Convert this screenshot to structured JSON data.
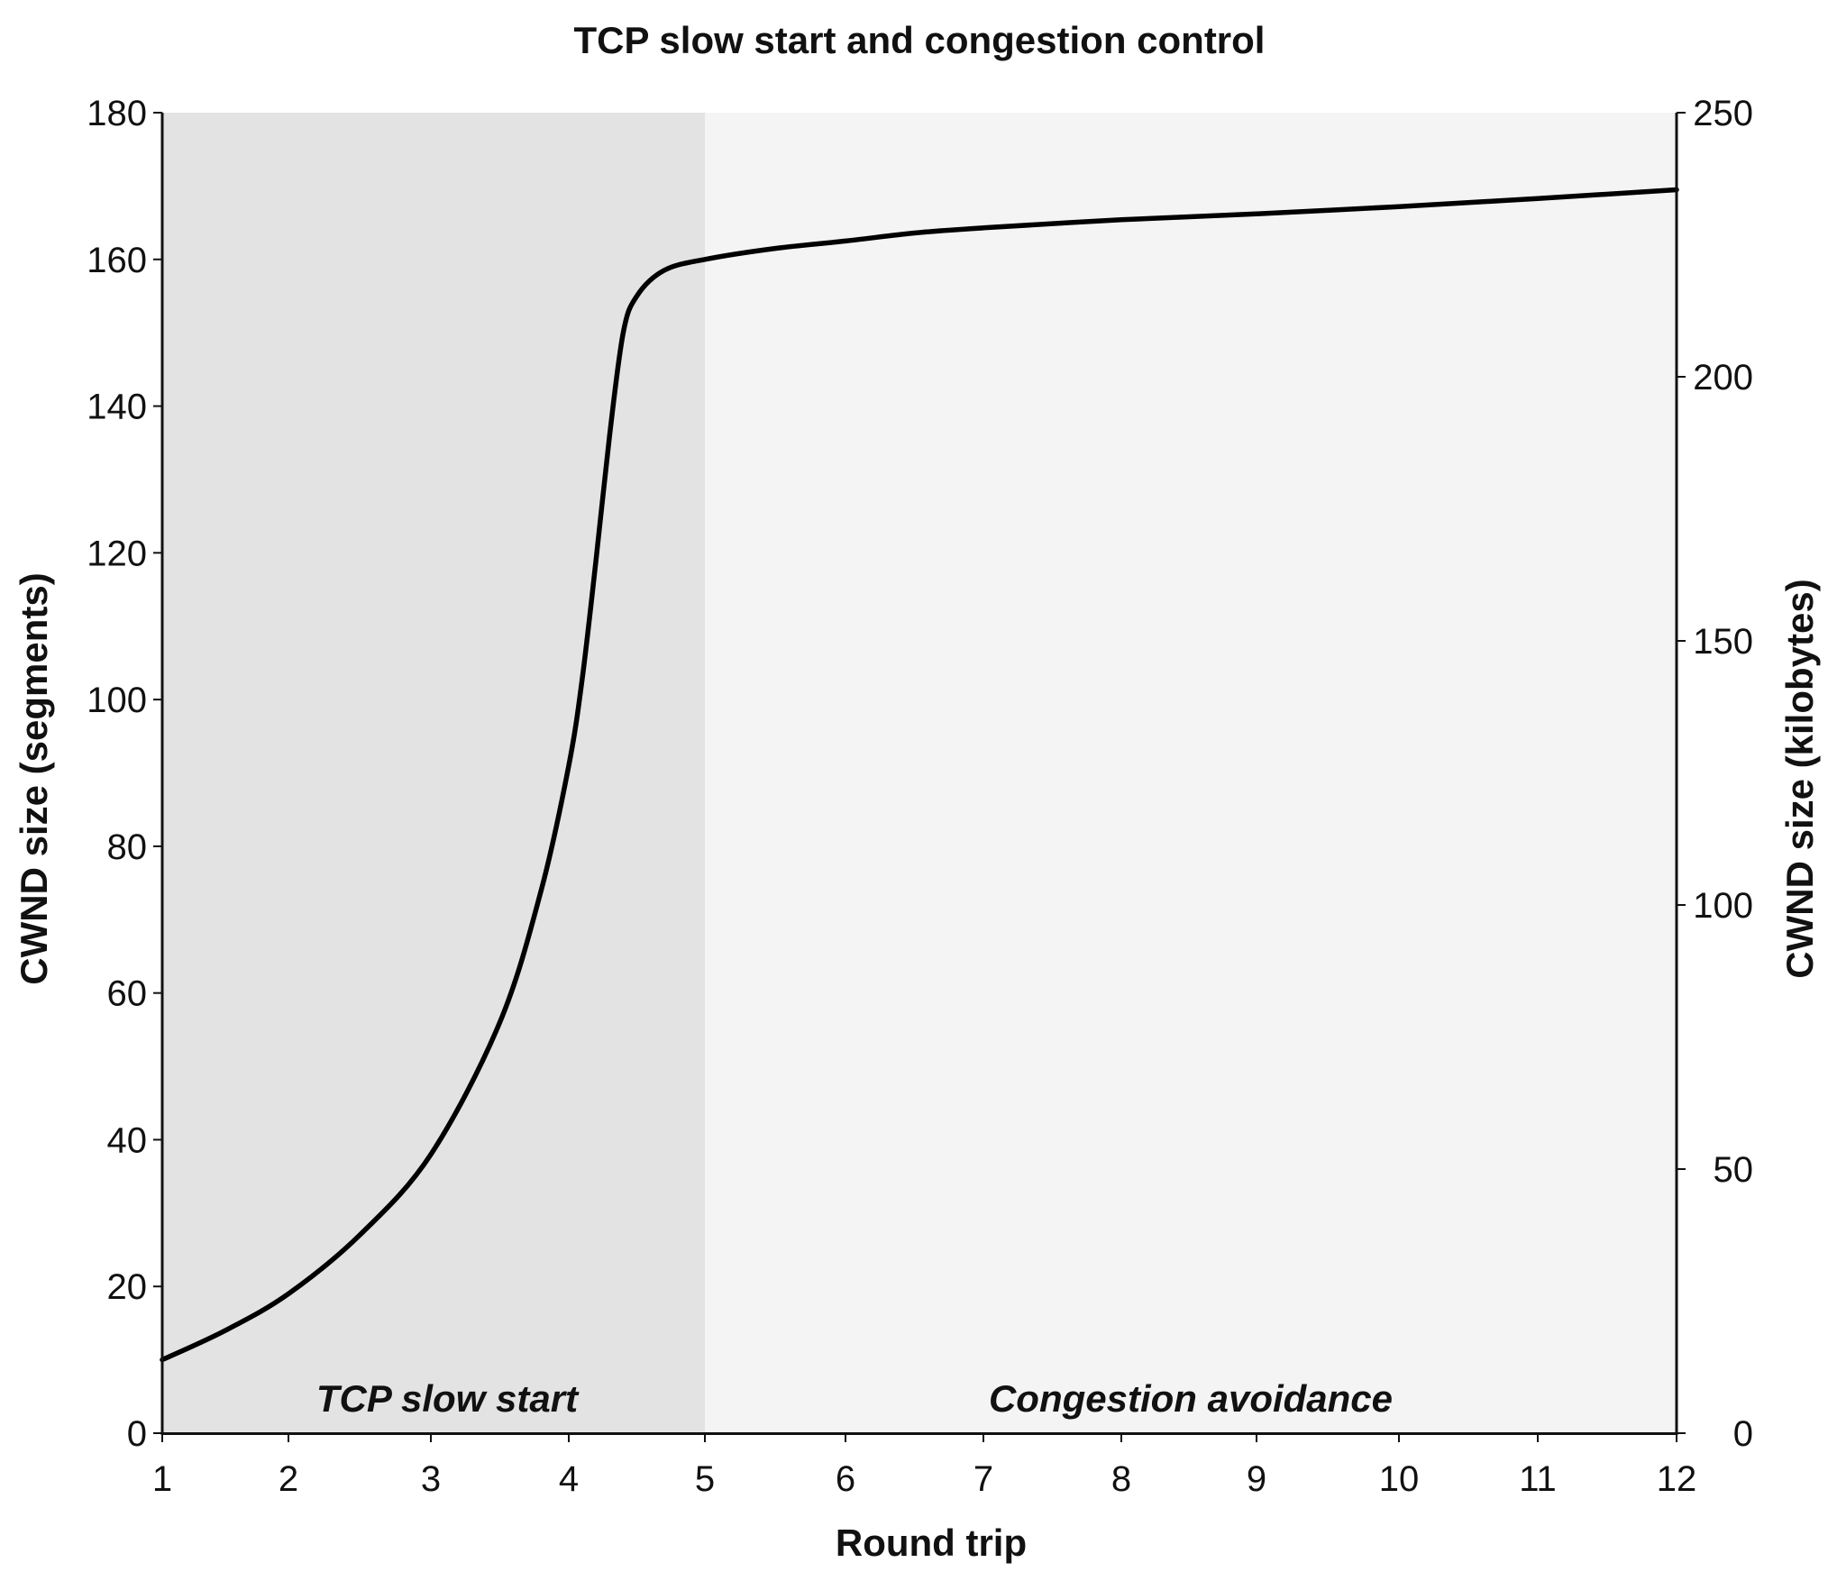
{
  "chart_data": {
    "type": "line",
    "title": "TCP slow start and congestion control",
    "xlabel": "Round trip",
    "ylabel": "CWND size (segments)",
    "ylabel_right": "CWND size (kilobytes)",
    "x_ticks": [
      "1",
      "2",
      "3",
      "4",
      "5",
      "6",
      "7",
      "8",
      "9",
      "10",
      "11",
      "12"
    ],
    "y_ticks": [
      "0",
      "20",
      "40",
      "60",
      "80",
      "100",
      "120",
      "140",
      "160",
      "180"
    ],
    "y_right_ticks": [
      "0",
      "50",
      "100",
      "150",
      "200",
      "250"
    ],
    "xlim": [
      1,
      12
    ],
    "ylim": [
      0,
      180
    ],
    "ylim_right": [
      0,
      250
    ],
    "grid": false,
    "regions": [
      {
        "label": "TCP slow start",
        "x_start": 1,
        "x_end": 5,
        "color": "#e3e3e3"
      },
      {
        "label": "Congestion avoidance",
        "x_start": 5,
        "x_end": 12,
        "color": "#f4f4f4"
      }
    ],
    "series": [
      {
        "color": "#000000",
        "points": [
          [
            1,
            10
          ],
          [
            1.5,
            14
          ],
          [
            2,
            19
          ],
          [
            2.5,
            27
          ],
          [
            3,
            38
          ],
          [
            3.5,
            56
          ],
          [
            3.8,
            74
          ],
          [
            4,
            91
          ],
          [
            4.1,
            103
          ],
          [
            4.2,
            119
          ],
          [
            4.3,
            136
          ],
          [
            4.4,
            150
          ],
          [
            4.5,
            155
          ],
          [
            4.7,
            158.5
          ],
          [
            5,
            160
          ],
          [
            5.5,
            161.5
          ],
          [
            6,
            162.5
          ],
          [
            6.5,
            163.6
          ],
          [
            7,
            164.3
          ],
          [
            8,
            165.4
          ],
          [
            9,
            166.2
          ],
          [
            10,
            167.2
          ],
          [
            11,
            168.3
          ],
          [
            12,
            169.5
          ]
        ]
      }
    ]
  }
}
